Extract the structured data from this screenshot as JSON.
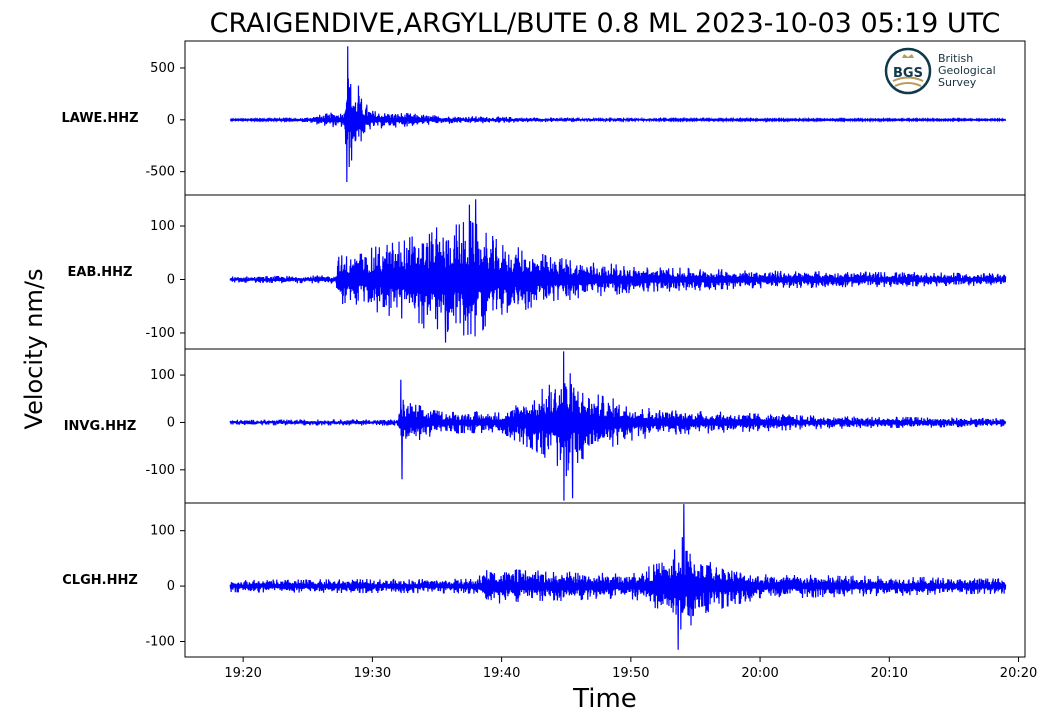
{
  "chart_data": {
    "type": "line",
    "title": "CRAIGENDIVE,ARGYLL/BUTE 0.8 ML   2023-10-03 05:19 UTC",
    "xlabel": "Time",
    "ylabel": "Velocity nm/s",
    "x_ticks": [
      "19:20",
      "19:30",
      "19:40",
      "19:50",
      "20:00",
      "20:10",
      "20:20"
    ],
    "x_range": [
      "19:15:30",
      "20:20:30"
    ],
    "trace_span": [
      "19:19:00",
      "20:19:00"
    ],
    "line_color": "#0000ff",
    "grid": false,
    "panels": [
      {
        "station": "LAWE.HHZ",
        "yticks": [
          500,
          0,
          -500
        ],
        "ylim": [
          -725,
          760
        ],
        "envelope": [
          {
            "t": "19:19:00",
            "amp": 5
          },
          {
            "t": "19:24:00",
            "amp": 10
          },
          {
            "t": "19:26:00",
            "amp": 45
          },
          {
            "t": "19:27:50",
            "amp": 80
          },
          {
            "t": "19:28:00",
            "amp": 520
          },
          {
            "t": "19:28:40",
            "amp": 250
          },
          {
            "t": "19:30:00",
            "amp": 80
          },
          {
            "t": "19:35:00",
            "amp": 38
          },
          {
            "t": "19:42:00",
            "amp": 22
          },
          {
            "t": "19:55:00",
            "amp": 8
          },
          {
            "t": "20:19:00",
            "amp": 5
          }
        ],
        "peaks": [
          {
            "t": "19:28:06",
            "v": 710
          },
          {
            "t": "19:28:02",
            "v": -600
          },
          {
            "t": "19:28:55",
            "v": 330
          }
        ]
      },
      {
        "station": "EAB.HHZ",
        "yticks": [
          100,
          0,
          -100
        ],
        "ylim": [
          -130,
          158
        ],
        "envelope": [
          {
            "t": "19:19:00",
            "amp": 5
          },
          {
            "t": "19:27:10",
            "amp": 7
          },
          {
            "t": "19:27:20",
            "amp": 40
          },
          {
            "t": "19:29:00",
            "amp": 45
          },
          {
            "t": "19:31:00",
            "amp": 60
          },
          {
            "t": "19:34:00",
            "amp": 80
          },
          {
            "t": "19:37:30",
            "amp": 100
          },
          {
            "t": "19:40:00",
            "amp": 60
          },
          {
            "t": "19:44:00",
            "amp": 38
          },
          {
            "t": "19:50:00",
            "amp": 22
          },
          {
            "t": "20:00:00",
            "amp": 15
          },
          {
            "t": "20:19:00",
            "amp": 10
          }
        ],
        "peaks": [
          {
            "t": "19:38:00",
            "v": 150
          },
          {
            "t": "19:35:40",
            "v": -118
          },
          {
            "t": "19:37:30",
            "v": 140
          }
        ]
      },
      {
        "station": "INVG.HHZ",
        "yticks": [
          100,
          0,
          -100
        ],
        "ylim": [
          -170,
          155
        ],
        "envelope": [
          {
            "t": "19:19:00",
            "amp": 5
          },
          {
            "t": "19:32:00",
            "amp": 6
          },
          {
            "t": "19:32:10",
            "amp": 45
          },
          {
            "t": "19:35:00",
            "amp": 22
          },
          {
            "t": "19:40:00",
            "amp": 20
          },
          {
            "t": "19:43:00",
            "amp": 60
          },
          {
            "t": "19:45:00",
            "amp": 100
          },
          {
            "t": "19:47:00",
            "amp": 55
          },
          {
            "t": "19:52:00",
            "amp": 25
          },
          {
            "t": "20:05:00",
            "amp": 12
          },
          {
            "t": "20:19:00",
            "amp": 8
          }
        ],
        "peaks": [
          {
            "t": "19:32:12",
            "v": 90
          },
          {
            "t": "19:32:18",
            "v": -120
          },
          {
            "t": "19:44:48",
            "v": 150
          },
          {
            "t": "19:44:50",
            "v": -165
          },
          {
            "t": "19:45:30",
            "v": -160
          }
        ]
      },
      {
        "station": "CLGH.HHZ",
        "yticks": [
          100,
          0,
          -100
        ],
        "ylim": [
          -128,
          150
        ],
        "envelope": [
          {
            "t": "19:19:00",
            "amp": 10
          },
          {
            "t": "19:38:00",
            "amp": 12
          },
          {
            "t": "19:39:00",
            "amp": 30
          },
          {
            "t": "19:42:00",
            "amp": 25
          },
          {
            "t": "19:50:00",
            "amp": 20
          },
          {
            "t": "19:53:00",
            "amp": 45
          },
          {
            "t": "19:54:00",
            "amp": 80
          },
          {
            "t": "19:55:30",
            "amp": 45
          },
          {
            "t": "20:00:00",
            "amp": 20
          },
          {
            "t": "20:19:00",
            "amp": 12
          }
        ],
        "peaks": [
          {
            "t": "19:54:06",
            "v": 148
          },
          {
            "t": "19:53:40",
            "v": -115
          }
        ]
      }
    ]
  },
  "logo": {
    "abbr": "BGS",
    "lines": [
      "British",
      "Geological",
      "Survey"
    ],
    "ring_color": "#10394a",
    "accent_color": "#b89a5a",
    "text_color": "#17323e"
  }
}
